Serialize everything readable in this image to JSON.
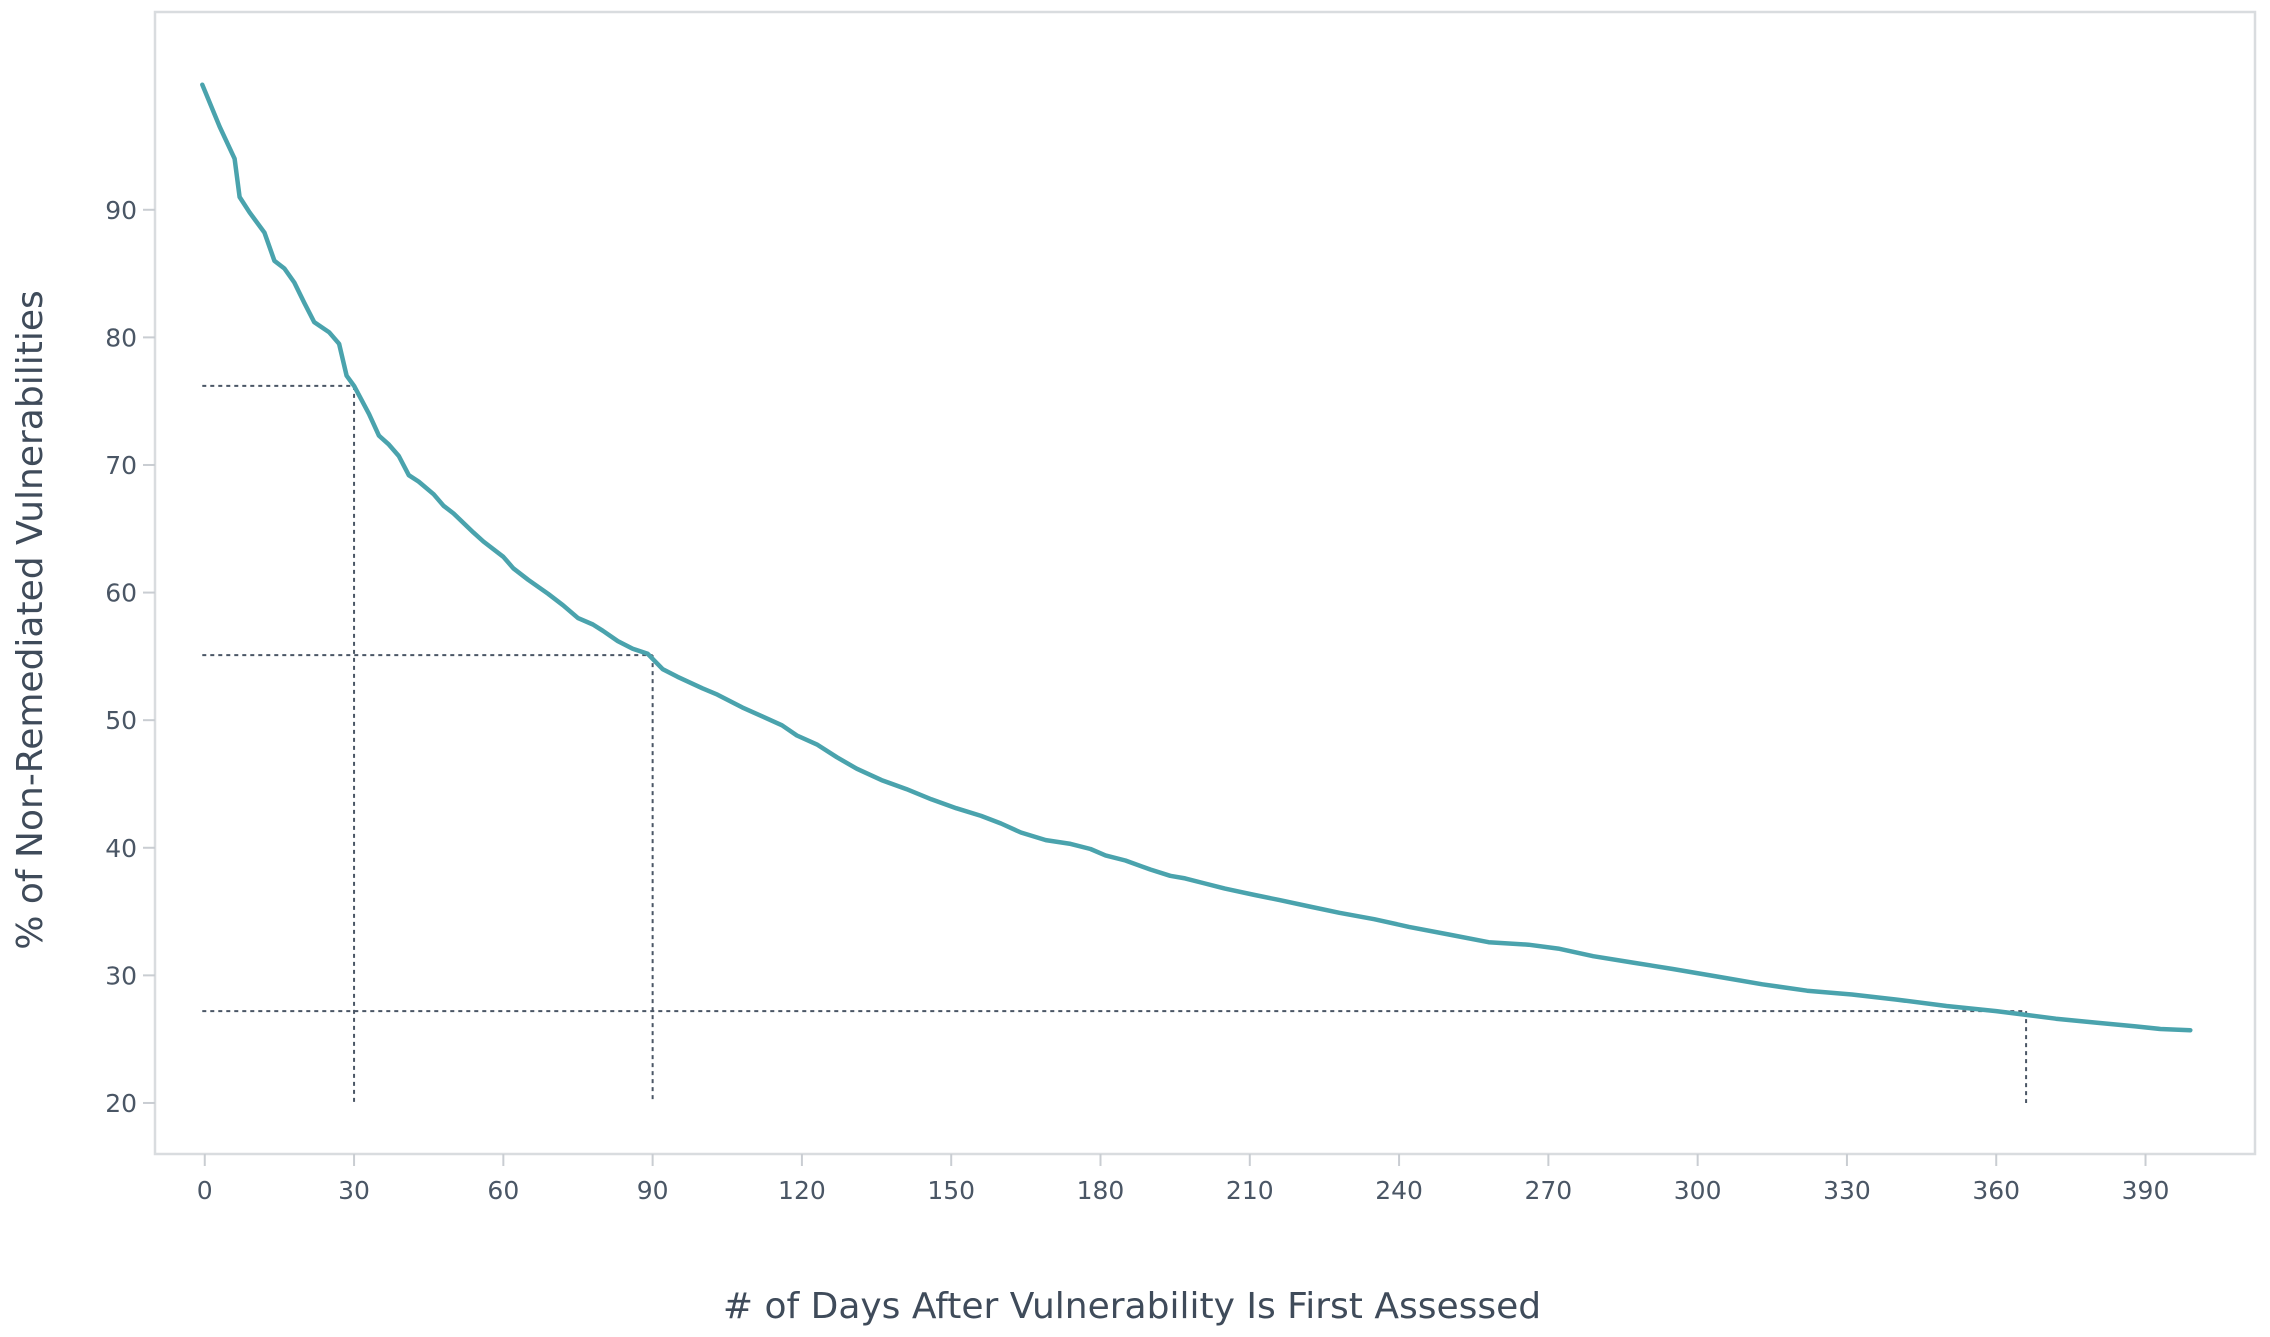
{
  "chart_data": {
    "type": "line",
    "title": "",
    "xlabel": "# of Days After Vulnerability Is First Assessed",
    "ylabel": "% of  Non-Remediated Vulnerabilities",
    "xlim": [
      -10,
      412
    ],
    "ylim": [
      16,
      105.5
    ],
    "x_ticks": [
      0,
      30,
      60,
      90,
      120,
      150,
      180,
      210,
      240,
      270,
      300,
      330,
      360,
      390
    ],
    "y_ticks": [
      20,
      30,
      40,
      50,
      60,
      70,
      80,
      90
    ],
    "grid": false,
    "line_color": "#4aa3ad",
    "guide_color": "#4a5665",
    "series": [
      {
        "x": [
          -0.5,
          3,
          6,
          7,
          9,
          12,
          14,
          16,
          18,
          20,
          22,
          25,
          27,
          28.5,
          30,
          33,
          35,
          37,
          39,
          41,
          43,
          46,
          48,
          50,
          54,
          56,
          60,
          62,
          65,
          69,
          72,
          75,
          78,
          80,
          83,
          86,
          89,
          92,
          95,
          100,
          103,
          108,
          112,
          116,
          119,
          123,
          127,
          131,
          136,
          141,
          146,
          151,
          156,
          160,
          164,
          169,
          174,
          178,
          181,
          185,
          190,
          194,
          197,
          201,
          205,
          211,
          216,
          222,
          228,
          235,
          242,
          250,
          258,
          266,
          272,
          279,
          287,
          295,
          304,
          313,
          322,
          331,
          340,
          350,
          360,
          366,
          372,
          380,
          388,
          393,
          399
        ],
        "y": [
          99.8,
          96.5,
          94,
          91,
          89.8,
          88.2,
          86,
          85.4,
          84.3,
          82.7,
          81.2,
          80.4,
          79.5,
          77,
          76.2,
          74,
          72.3,
          71.6,
          70.7,
          69.2,
          68.7,
          67.7,
          66.8,
          66.2,
          64.7,
          64,
          62.8,
          61.9,
          61,
          59.9,
          59,
          58,
          57.5,
          57,
          56.2,
          55.6,
          55.2,
          54,
          53.4,
          52.5,
          52,
          51,
          50.3,
          49.6,
          48.8,
          48.1,
          47.1,
          46.2,
          45.3,
          44.6,
          43.8,
          43.1,
          42.5,
          41.9,
          41.2,
          40.6,
          40.3,
          39.9,
          39.4,
          39,
          38.3,
          37.8,
          37.6,
          37.2,
          36.8,
          36.3,
          35.9,
          35.4,
          34.9,
          34.4,
          33.8,
          33.2,
          32.6,
          32.4,
          32.1,
          31.5,
          31,
          30.5,
          29.9,
          29.3,
          28.8,
          28.5,
          28.1,
          27.6,
          27.2,
          26.9,
          26.6,
          26.3,
          26,
          25.8,
          25.7
        ]
      }
    ],
    "guides": [
      {
        "x": 30,
        "y": 76.2
      },
      {
        "x": 90,
        "y": 55.1
      },
      {
        "x": 366,
        "y": 27.2
      }
    ]
  }
}
